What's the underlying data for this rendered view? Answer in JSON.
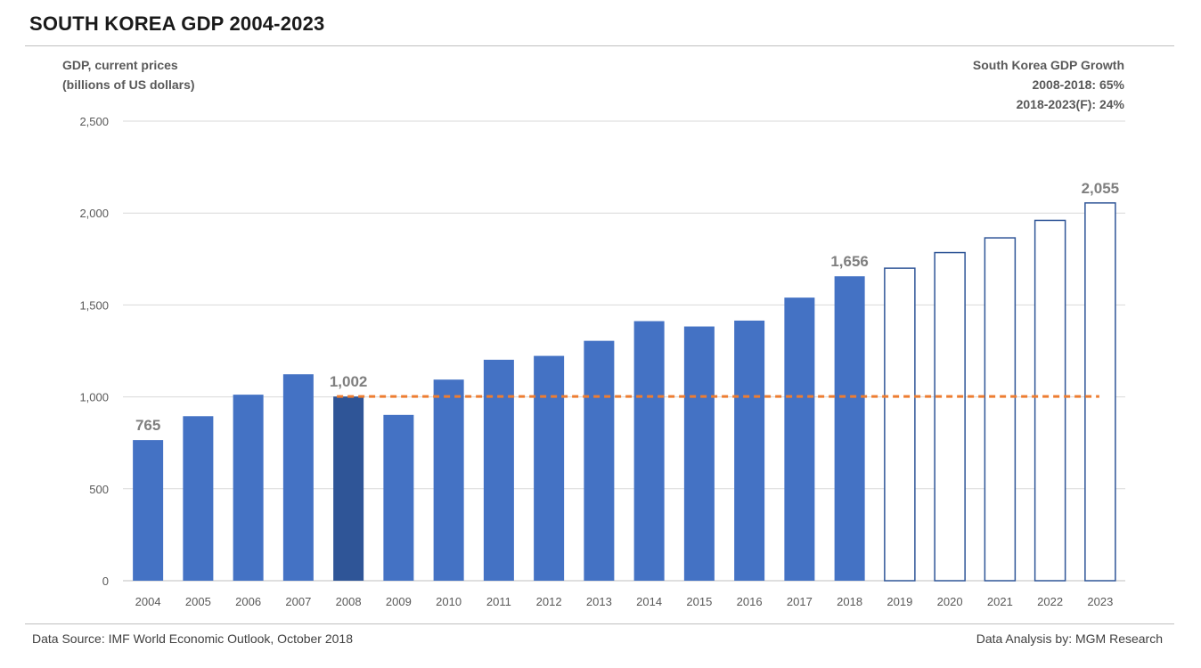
{
  "page": {
    "title": "SOUTH KOREA GDP 2004-2023",
    "source": "Data Source: IMF World Economic Outlook, October 2018",
    "credit": "Data Analysis by: MGM Research"
  },
  "annotation": {
    "heading": "South Korea GDP Growth",
    "line1": "2008-2018: 65%",
    "line2": "2018-2023(F): 24%"
  },
  "chart_data": {
    "type": "bar",
    "ylabel_line1": "GDP, current prices",
    "ylabel_line2": "(billions of US dollars)",
    "categories": [
      "2004",
      "2005",
      "2006",
      "2007",
      "2008",
      "2009",
      "2010",
      "2011",
      "2012",
      "2013",
      "2014",
      "2015",
      "2016",
      "2017",
      "2018",
      "2019",
      "2020",
      "2021",
      "2022",
      "2023"
    ],
    "values": [
      765,
      895,
      1012,
      1123,
      1002,
      902,
      1094,
      1202,
      1223,
      1305,
      1412,
      1383,
      1415,
      1540,
      1656,
      1700,
      1785,
      1865,
      1960,
      2055
    ],
    "forecast_from": "2019",
    "highlight": "2008",
    "labeled_points": {
      "2004": "765",
      "2008": "1,002",
      "2018": "1,656",
      "2023": "2,055"
    },
    "reference_line": {
      "value": 1002,
      "from": "2008",
      "to": "2023",
      "style": "dashed",
      "color": "#ed7d31"
    },
    "ylim": [
      0,
      2500
    ],
    "yticks": [
      0,
      500,
      1000,
      1500,
      2000,
      2500
    ],
    "ytick_labels": [
      "0",
      "500",
      "1,000",
      "1,500",
      "2,000",
      "2,500"
    ],
    "grid": true,
    "colors": {
      "actual": "#4472c4",
      "highlight": "#2f5597",
      "forecast_outline": "#2f5597",
      "grid": "#d9d9d9",
      "axis": "#bfbfbf",
      "label": "#7f7f7f",
      "tick": "#595959"
    }
  }
}
